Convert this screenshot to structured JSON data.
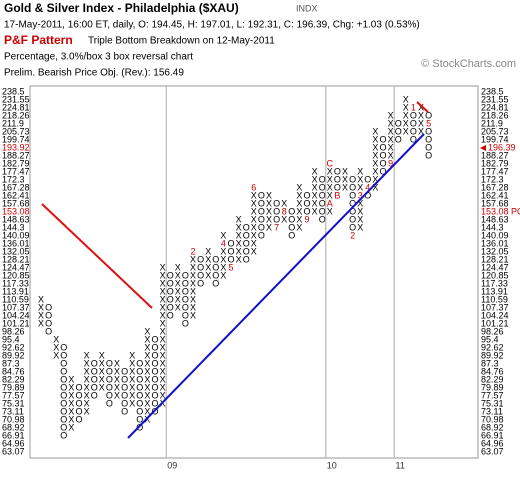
{
  "chart_data": {
    "type": "point-and-figure",
    "title": "Gold & Silver Index - Philadelphia ($XAU)",
    "exchange": "INDX",
    "subtitle": "17-May-2011, 16:00 ET, daily, O: 194.45, H: 197.01, L: 192.31, C: 196.39, Chg: +1.03 (0.53%)",
    "pattern_label": "P&F Pattern",
    "pattern": "Triple Bottom Breakdown on 12-May-2011",
    "scaling": "Percentage, 3.0%/box 3 box reversal chart",
    "objective_text": "Prelim. Bearish Price Obj. (Rev.): 156.49",
    "watermark": "© StockCharts.com",
    "boxes": [
      238.5,
      231.55,
      224.81,
      218.26,
      211.9,
      205.73,
      199.74,
      193.92,
      188.27,
      182.79,
      177.47,
      172.3,
      167.28,
      162.41,
      157.68,
      153.08,
      148.63,
      144.3,
      140.09,
      136.01,
      132.05,
      128.21,
      124.47,
      120.85,
      117.33,
      113.91,
      110.59,
      107.37,
      104.24,
      101.21,
      98.26,
      95.4,
      92.62,
      89.92,
      87.3,
      84.76,
      82.29,
      79.89,
      77.57,
      75.31,
      73.11,
      70.98,
      68.92,
      66.91,
      64.96,
      63.07
    ],
    "price_box": 193.92,
    "last_close": 196.39,
    "objective_box": 153.08,
    "objective_label": "153.08 PO",
    "highlight_color": "#cc0000",
    "x_color": "#000000",
    "columns": [
      {
        "kind": "X",
        "high": 110.59,
        "low": 101.21
      },
      {
        "kind": "O",
        "high": 107.37,
        "low": 98.26
      },
      {
        "kind": "X",
        "high": 95.4,
        "low": 89.92
      },
      {
        "kind": "O",
        "high": 92.62,
        "low": 66.91
      },
      {
        "kind": "X",
        "high": 82.29,
        "low": 68.92
      },
      {
        "kind": "O",
        "high": 79.89,
        "low": 70.98
      },
      {
        "kind": "X",
        "high": 89.92,
        "low": 73.11
      },
      {
        "kind": "O",
        "high": 87.3,
        "low": 77.57
      },
      {
        "kind": "X",
        "high": 89.92,
        "low": 79.89
      },
      {
        "kind": "O",
        "high": 87.3,
        "low": 75.31
      },
      {
        "kind": "X",
        "high": 87.3,
        "low": 77.57
      },
      {
        "kind": "O",
        "high": 84.76,
        "low": 73.11
      },
      {
        "kind": "X",
        "high": 89.92,
        "low": 75.31
      },
      {
        "kind": "O",
        "high": 87.3,
        "low": 68.92
      },
      {
        "kind": "X",
        "high": 98.26,
        "low": 70.98
      },
      {
        "kind": "O",
        "high": 95.4,
        "low": 73.11
      },
      {
        "kind": "X",
        "high": 124.47,
        "low": 75.31
      },
      {
        "kind": "O",
        "high": 120.85,
        "low": 104.24,
        "year": "09"
      },
      {
        "kind": "X",
        "high": 124.47,
        "low": 107.37
      },
      {
        "kind": "O",
        "high": 120.85,
        "low": 101.21
      },
      {
        "kind": "X",
        "high": 132.05,
        "low": 104.24,
        "markers": [
          {
            "label": "2",
            "box": 132.05
          }
        ]
      },
      {
        "kind": "O",
        "high": 128.21,
        "low": 117.33
      },
      {
        "kind": "X",
        "high": 132.05,
        "low": 120.85
      },
      {
        "kind": "O",
        "high": 128.21,
        "low": 117.33
      },
      {
        "kind": "X",
        "high": 140.09,
        "low": 120.85,
        "markers": [
          {
            "label": "4",
            "box": 136.01
          }
        ]
      },
      {
        "kind": "O",
        "high": 136.01,
        "low": 124.47,
        "markers": [
          {
            "label": "5",
            "box": 124.47
          }
        ]
      },
      {
        "kind": "X",
        "high": 148.63,
        "low": 128.21
      },
      {
        "kind": "O",
        "high": 144.3,
        "low": 128.21
      },
      {
        "kind": "X",
        "high": 167.28,
        "low": 132.05,
        "markers": [
          {
            "label": "6",
            "box": 167.28
          }
        ]
      },
      {
        "kind": "O",
        "high": 162.41,
        "low": 140.09
      },
      {
        "kind": "X",
        "high": 162.41,
        "low": 144.3
      },
      {
        "kind": "O",
        "high": 157.68,
        "low": 144.3,
        "markers": [
          {
            "label": "7",
            "box": 144.3
          }
        ]
      },
      {
        "kind": "X",
        "high": 157.68,
        "low": 148.63,
        "markers": [
          {
            "label": "8",
            "box": 153.08
          }
        ]
      },
      {
        "kind": "O",
        "high": 153.08,
        "low": 140.09
      },
      {
        "kind": "X",
        "high": 167.28,
        "low": 144.3
      },
      {
        "kind": "O",
        "high": 162.41,
        "low": 148.63,
        "markers": [
          {
            "label": "9",
            "box": 148.63
          }
        ]
      },
      {
        "kind": "X",
        "high": 177.47,
        "low": 153.08
      },
      {
        "kind": "O",
        "high": 172.3,
        "low": 148.63
      },
      {
        "kind": "X",
        "high": 182.79,
        "low": 153.08,
        "year": "10",
        "markers": [
          {
            "label": "C",
            "box": 182.79
          },
          {
            "label": "A",
            "box": 157.68
          }
        ]
      },
      {
        "kind": "O",
        "high": 177.47,
        "low": 162.41,
        "markers": [
          {
            "label": "B",
            "box": 162.41
          }
        ]
      },
      {
        "kind": "X",
        "high": 177.47,
        "low": 167.28
      },
      {
        "kind": "O",
        "high": 172.3,
        "low": 140.09,
        "markers": [
          {
            "label": "2",
            "box": 140.09
          }
        ]
      },
      {
        "kind": "X",
        "high": 177.47,
        "low": 144.3,
        "markers": [
          {
            "label": "3",
            "box": 162.41
          }
        ]
      },
      {
        "kind": "O",
        "high": 172.3,
        "low": 162.41,
        "markers": [
          {
            "label": "4",
            "box": 167.28
          }
        ]
      },
      {
        "kind": "X",
        "high": 205.73,
        "low": 167.28
      },
      {
        "kind": "O",
        "high": 199.74,
        "low": 177.47
      },
      {
        "kind": "X",
        "high": 218.26,
        "low": 182.79,
        "markers": [
          {
            "label": "9",
            "box": 182.79
          }
        ]
      },
      {
        "kind": "O",
        "high": 211.9,
        "low": 199.74,
        "year": "11"
      },
      {
        "kind": "X",
        "high": 231.55,
        "low": 205.73
      },
      {
        "kind": "O",
        "high": 224.81,
        "low": 199.74,
        "markers": [
          {
            "label": "1",
            "box": 224.81
          }
        ]
      },
      {
        "kind": "X",
        "high": 224.81,
        "low": 205.73
      },
      {
        "kind": "O",
        "high": 218.26,
        "low": 188.27,
        "markers": [
          {
            "label": "5",
            "box": 211.9
          }
        ]
      }
    ]
  }
}
